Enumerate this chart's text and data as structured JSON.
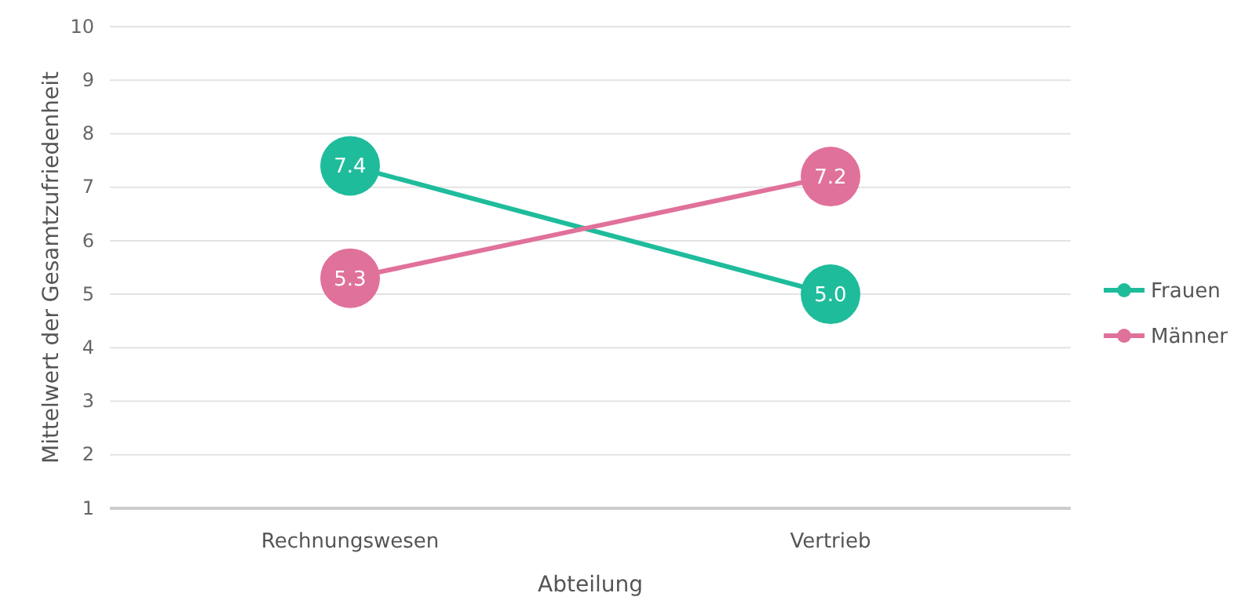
{
  "chart_data": {
    "type": "line",
    "xlabel": "Abteilung",
    "ylabel": "Mittelwert der Gesamtzufriedenheit",
    "categories": [
      "Rechnungswesen",
      "Vertrieb"
    ],
    "series": [
      {
        "name": "Frauen",
        "color": "#1fbc9c",
        "values": [
          7.4,
          5.0
        ],
        "value_labels": [
          "7.4",
          "5.0"
        ]
      },
      {
        "name": "Männer",
        "color": "#e0719b",
        "values": [
          5.3,
          7.2
        ],
        "value_labels": [
          "5.3",
          "7.2"
        ]
      }
    ],
    "ylim": [
      1,
      10
    ],
    "yticks": [
      1,
      2,
      3,
      4,
      5,
      6,
      7,
      8,
      9,
      10
    ],
    "grid": "y",
    "legend": "right",
    "marker": "circle",
    "line_style": "solid"
  }
}
